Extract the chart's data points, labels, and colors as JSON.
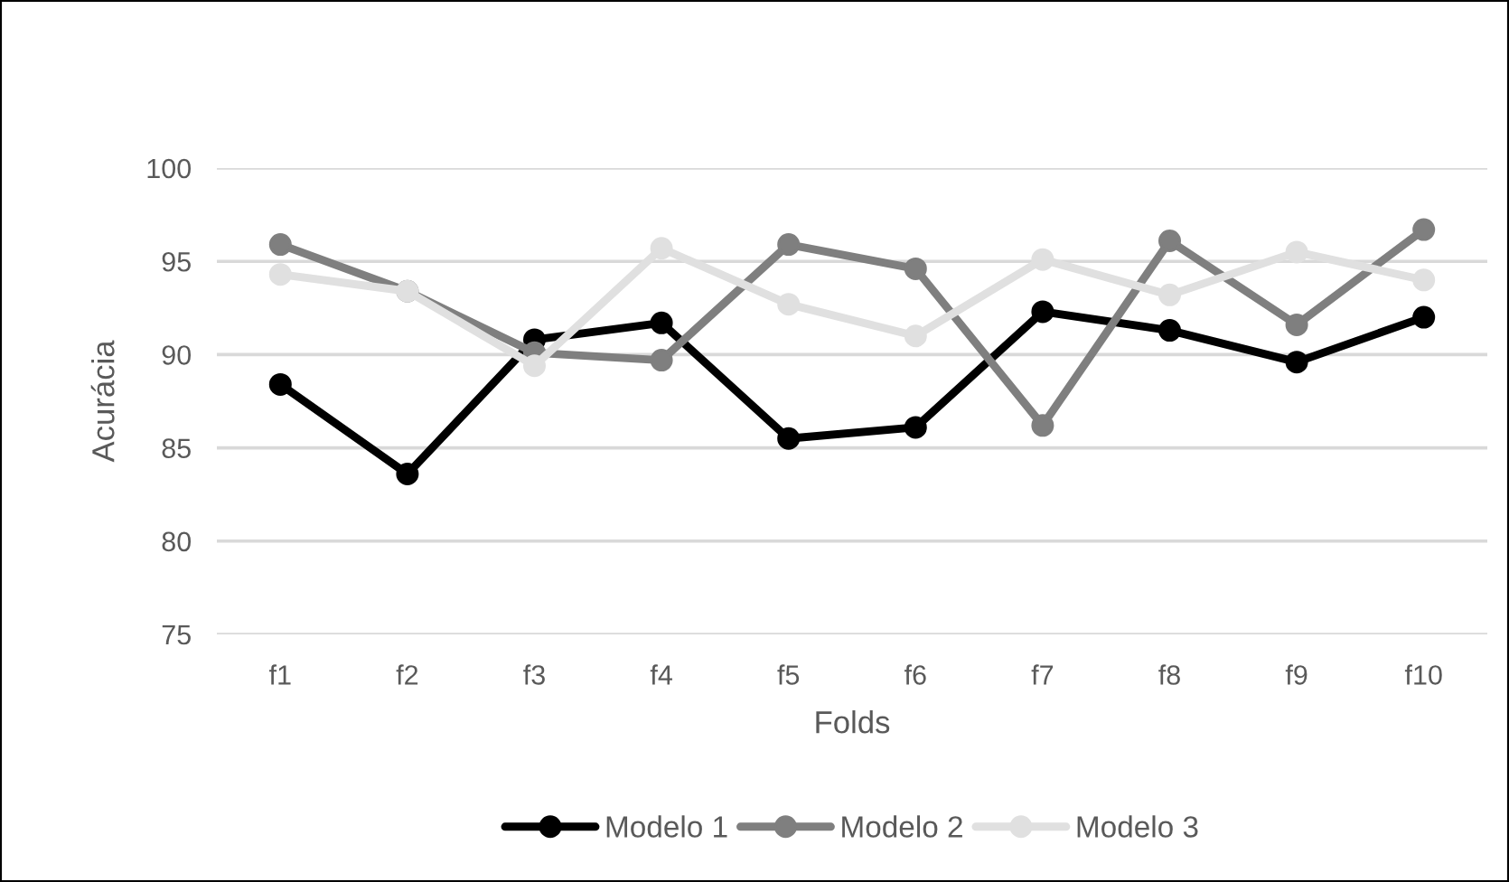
{
  "chart_data": {
    "type": "line",
    "xlabel": "Folds",
    "ylabel": "Acurácia",
    "categories": [
      "f1",
      "f2",
      "f3",
      "f4",
      "f5",
      "f6",
      "f7",
      "f8",
      "f9",
      "f10"
    ],
    "series": [
      {
        "name": "Modelo 1",
        "color": "#000000",
        "values": [
          88.4,
          83.6,
          90.8,
          91.7,
          85.5,
          86.1,
          92.3,
          91.3,
          89.6,
          92.0
        ]
      },
      {
        "name": "Modelo 2",
        "color": "#7f7f7f",
        "values": [
          95.9,
          93.4,
          90.1,
          89.7,
          95.9,
          94.6,
          86.2,
          96.1,
          91.6,
          96.7
        ]
      },
      {
        "name": "Modelo 3",
        "color": "#e0e0e0",
        "values": [
          94.3,
          93.4,
          89.4,
          95.7,
          92.7,
          91.0,
          95.1,
          93.2,
          95.5,
          94.0
        ]
      }
    ],
    "ylim": [
      75,
      100
    ],
    "yticks": [
      75,
      80,
      85,
      90,
      95,
      100
    ],
    "grid": "y",
    "legend": "bottom",
    "marker": "circle",
    "line_style": "solid"
  }
}
